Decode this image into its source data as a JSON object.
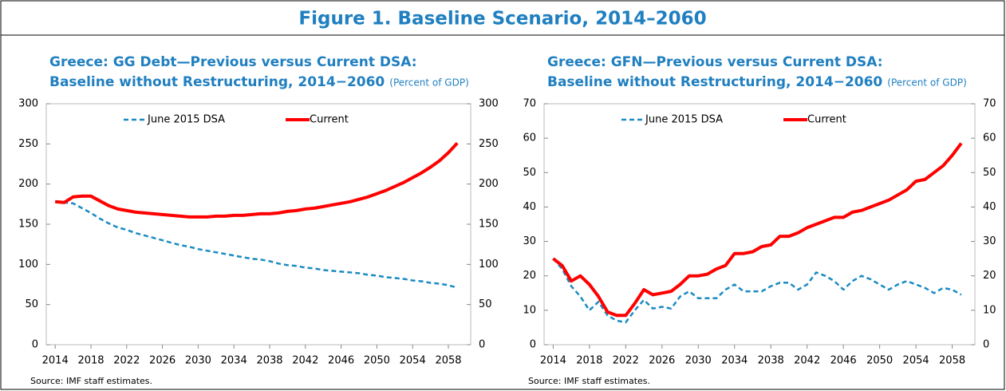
{
  "figure_title": "Figure 1. Baseline Scenario, 2014–2060",
  "chart_data": [
    {
      "type": "line",
      "title": [
        "Greece: GG Debt—Previous versus Current DSA:",
        "Baseline without Restructuring, 2014−2060"
      ],
      "units": "(Percent of GDP)",
      "source": "Source: IMF staff estimates.",
      "x": [
        2014,
        2015,
        2016,
        2017,
        2018,
        2019,
        2020,
        2021,
        2022,
        2023,
        2024,
        2025,
        2026,
        2027,
        2028,
        2029,
        2030,
        2031,
        2032,
        2033,
        2034,
        2035,
        2036,
        2037,
        2038,
        2039,
        2040,
        2041,
        2042,
        2043,
        2044,
        2045,
        2046,
        2047,
        2048,
        2049,
        2050,
        2051,
        2052,
        2053,
        2054,
        2055,
        2056,
        2057,
        2058,
        2059
      ],
      "xlim": [
        2013,
        2060.5
      ],
      "xticks": [
        2014,
        2018,
        2022,
        2026,
        2030,
        2034,
        2038,
        2042,
        2046,
        2050,
        2054,
        2058
      ],
      "ylim": [
        0,
        300
      ],
      "yticks": [
        0,
        50,
        100,
        150,
        200,
        250,
        300
      ],
      "y2lim": [
        0,
        300
      ],
      "y2ticks": [
        0,
        50,
        100,
        150,
        200,
        250,
        300
      ],
      "series": [
        {
          "name": "June 2015 DSA",
          "color": "#1a8bc2",
          "dashed": true,
          "values": [
            178,
            177,
            176,
            170,
            164,
            157,
            151,
            146,
            143,
            139,
            136,
            133,
            130,
            127,
            124,
            122,
            119,
            117,
            115,
            113,
            111,
            109,
            107,
            106,
            104,
            101,
            99,
            98,
            96,
            95,
            93,
            92,
            91,
            90,
            89,
            87,
            86,
            84,
            83,
            82,
            80,
            79,
            77,
            76,
            74,
            71
          ]
        },
        {
          "name": "Current",
          "color": "#ff0000",
          "dashed": false,
          "values": [
            178,
            177,
            184,
            185,
            185,
            179,
            173,
            169,
            167,
            165,
            164,
            163,
            162,
            161,
            160,
            159,
            159,
            159,
            160,
            160,
            161,
            161,
            162,
            163,
            163,
            164,
            166,
            167,
            169,
            170,
            172,
            174,
            176,
            178,
            181,
            184,
            188,
            192,
            197,
            202,
            208,
            214,
            221,
            229,
            239,
            251
          ]
        }
      ]
    },
    {
      "type": "line",
      "title": [
        "Greece: GFN—Previous versus Current DSA:",
        "Baseline without Restructuring, 2014−2060"
      ],
      "units": "(Percent of GDP)",
      "source": "Source: IMF staff estimates.",
      "x": [
        2014,
        2015,
        2016,
        2017,
        2018,
        2019,
        2020,
        2021,
        2022,
        2023,
        2024,
        2025,
        2026,
        2027,
        2028,
        2029,
        2030,
        2031,
        2032,
        2033,
        2034,
        2035,
        2036,
        2037,
        2038,
        2039,
        2040,
        2041,
        2042,
        2043,
        2044,
        2045,
        2046,
        2047,
        2048,
        2049,
        2050,
        2051,
        2052,
        2053,
        2054,
        2055,
        2056,
        2057,
        2058,
        2059
      ],
      "xlim": [
        2013,
        2060.5
      ],
      "xticks": [
        2014,
        2018,
        2022,
        2026,
        2030,
        2034,
        2038,
        2042,
        2046,
        2050,
        2054,
        2058
      ],
      "ylim": [
        0,
        70
      ],
      "yticks": [
        0,
        10,
        20,
        30,
        40,
        50,
        60,
        70
      ],
      "y2lim": [
        0,
        70
      ],
      "y2ticks": [
        0,
        10,
        20,
        30,
        40,
        50,
        60,
        70
      ],
      "series": [
        {
          "name": "June 2015 DSA",
          "color": "#1a8bc2",
          "dashed": true,
          "values": [
            25,
            22,
            17,
            14,
            10,
            12.5,
            8.5,
            7,
            6.5,
            10,
            13,
            10.5,
            11,
            10.5,
            14,
            15.5,
            13.5,
            13.5,
            13.5,
            16,
            17.5,
            15.5,
            15.5,
            15.5,
            17,
            18,
            18,
            16,
            17.5,
            21,
            20,
            18.5,
            16,
            18.5,
            20,
            19,
            17.5,
            16,
            17.5,
            18.5,
            17.5,
            16.5,
            15,
            16.5,
            16,
            14.5
          ]
        },
        {
          "name": "Current",
          "color": "#ff0000",
          "dashed": false,
          "values": [
            25,
            23,
            18.5,
            20,
            17.5,
            14,
            9.5,
            8.5,
            8.5,
            12,
            16,
            14.5,
            15,
            15.5,
            17.5,
            20,
            20,
            20.5,
            22,
            23,
            26.5,
            26.5,
            27,
            28.5,
            29,
            31.5,
            31.5,
            32.5,
            34,
            35,
            36,
            37,
            37,
            38.5,
            39,
            40,
            41,
            42,
            43.5,
            45,
            47.5,
            48,
            50,
            52,
            55,
            58.5
          ]
        }
      ]
    }
  ]
}
